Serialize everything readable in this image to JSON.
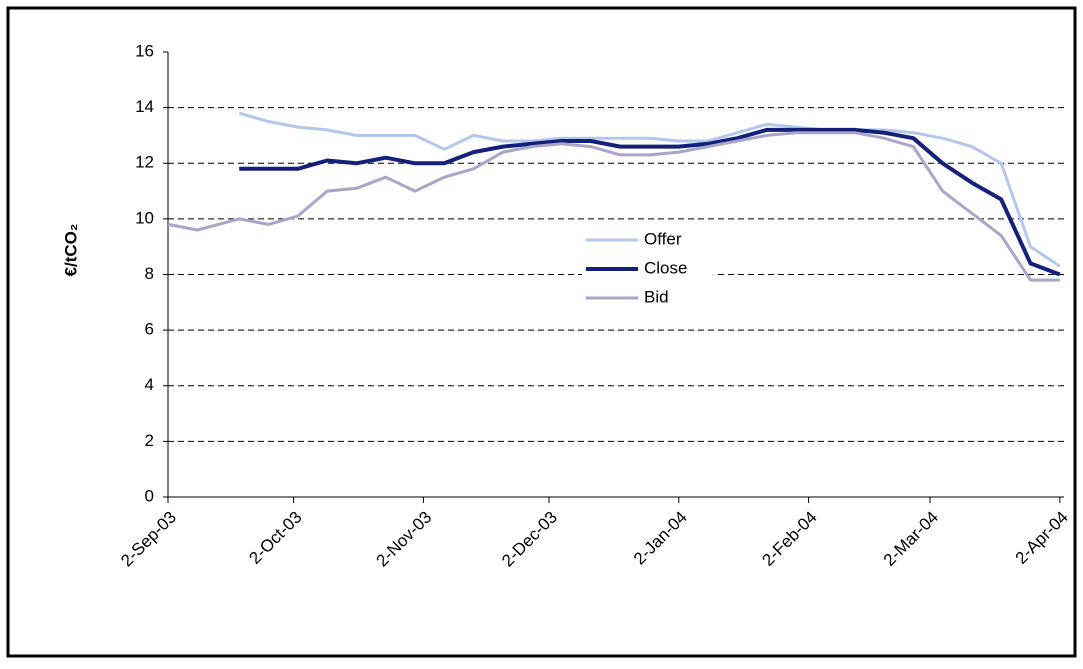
{
  "chart_data": {
    "type": "line",
    "y_label": "€/tCO₂",
    "x": [
      "2-Sep-03",
      "9-Sep-03",
      "19-Sep-03",
      "26-Sep-03",
      "3-Oct-03",
      "10-Oct-03",
      "17-Oct-03",
      "24-Oct-03",
      "31-Oct-03",
      "7-Nov-03",
      "14-Nov-03",
      "21-Nov-03",
      "28-Nov-03",
      "5-Dec-03",
      "12-Dec-03",
      "19-Dec-03",
      "26-Dec-03",
      "2-Jan-04",
      "9-Jan-04",
      "16-Jan-04",
      "23-Jan-04",
      "30-Jan-04",
      "6-Feb-04",
      "13-Feb-04",
      "20-Feb-04",
      "27-Feb-04",
      "5-Mar-04",
      "12-Mar-04",
      "19-Mar-04",
      "26-Mar-04",
      "2-Apr-04"
    ],
    "series": [
      {
        "name": "Offer",
        "color": "#b3c7ee",
        "width": 3,
        "values": [
          null,
          null,
          13.8,
          13.5,
          13.3,
          13.2,
          13.0,
          13.0,
          13.0,
          12.5,
          13.0,
          12.8,
          12.8,
          12.9,
          12.9,
          12.9,
          12.9,
          12.8,
          12.8,
          13.1,
          13.4,
          13.3,
          13.2,
          13.2,
          13.2,
          13.1,
          12.9,
          12.6,
          12.0,
          9.0,
          8.3
        ]
      },
      {
        "name": "Close",
        "color": "#14207a",
        "width": 4,
        "values": [
          null,
          null,
          11.8,
          11.8,
          11.8,
          12.1,
          12.0,
          12.2,
          12.0,
          12.0,
          12.4,
          12.6,
          12.7,
          12.8,
          12.8,
          12.6,
          12.6,
          12.6,
          12.7,
          12.9,
          13.2,
          13.2,
          13.2,
          13.2,
          13.1,
          12.9,
          12.0,
          11.3,
          10.7,
          8.4,
          8.0
        ]
      },
      {
        "name": "Bid",
        "color": "#a8a5c9",
        "width": 3,
        "values": [
          9.8,
          9.6,
          10.0,
          9.8,
          10.1,
          11.0,
          11.1,
          11.5,
          11.0,
          11.5,
          11.8,
          12.4,
          12.6,
          12.7,
          12.6,
          12.3,
          12.3,
          12.4,
          12.6,
          12.8,
          13.0,
          13.1,
          13.1,
          13.1,
          12.9,
          12.6,
          11.0,
          10.2,
          9.4,
          7.8,
          7.8
        ]
      }
    ],
    "xlim": [
      "2-Sep-03",
      "3-Apr-04"
    ],
    "xticks": [
      "2-Sep-03",
      "2-Oct-03",
      "2-Nov-03",
      "2-Dec-03",
      "2-Jan-04",
      "2-Feb-04",
      "2-Mar-04",
      "2-Apr-04"
    ],
    "ylim": [
      0,
      16
    ],
    "yticks": [
      0,
      2,
      4,
      6,
      8,
      10,
      12,
      14,
      16
    ],
    "grid": true
  }
}
